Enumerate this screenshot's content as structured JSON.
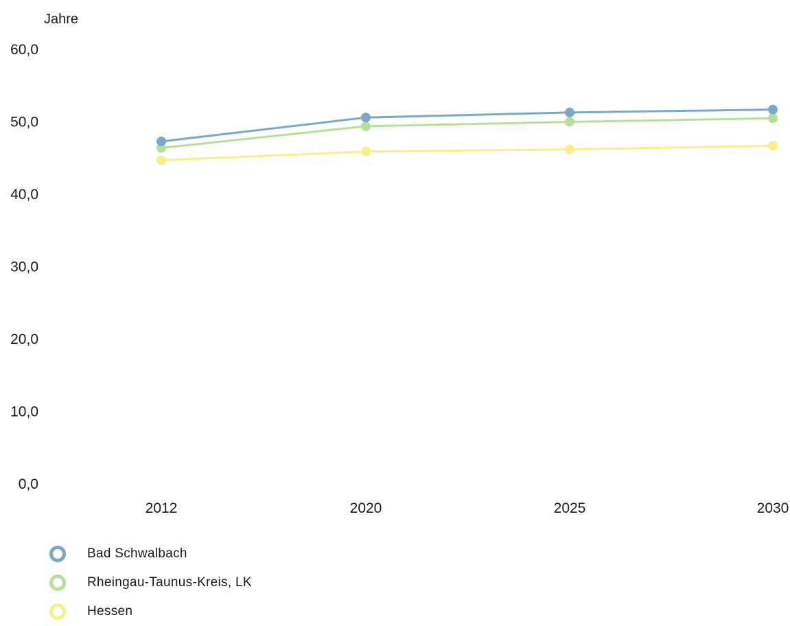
{
  "chart_data": {
    "type": "line",
    "title": "",
    "xlabel": "",
    "ylabel": "Jahre",
    "categories": [
      "2012",
      "2020",
      "2025",
      "2030"
    ],
    "series": [
      {
        "name": "Bad Schwalbach",
        "values": [
          47.2,
          50.5,
          51.2,
          51.6
        ],
        "color": "#7ba7c9"
      },
      {
        "name": "Rheingau-Taunus-Kreis, LK",
        "values": [
          46.3,
          49.3,
          49.9,
          50.4
        ],
        "color": "#b5e09a"
      },
      {
        "name": "Hessen",
        "values": [
          44.6,
          45.8,
          46.1,
          46.6
        ],
        "color": "#f7f08a"
      }
    ],
    "yticks": [
      "0,0",
      "10,0",
      "20,0",
      "30,0",
      "40,0",
      "50,0",
      "60,0"
    ],
    "ylim": [
      0,
      60
    ],
    "grid": false,
    "legend_position": "bottom-left"
  }
}
